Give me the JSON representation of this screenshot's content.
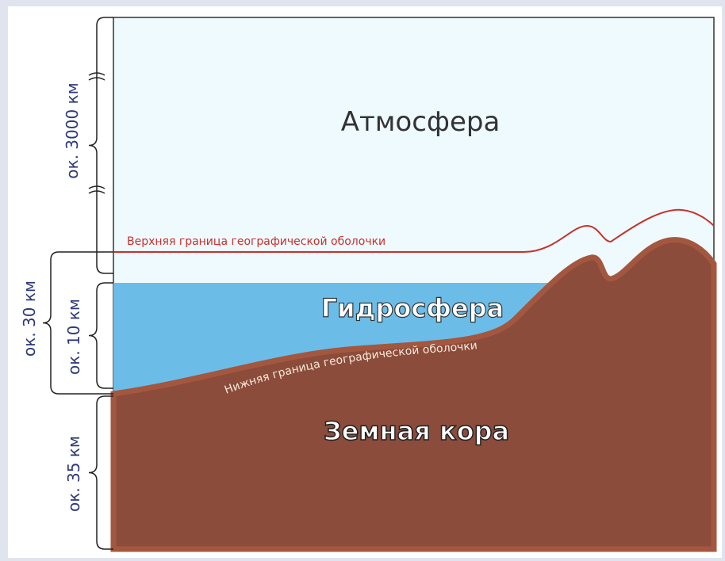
{
  "labels": {
    "atmosphere": "Атмосфера",
    "hydrosphere": "Гидросфера",
    "crust": "Земная кора",
    "upper_boundary": "Верхняя граница географической оболочки",
    "lower_boundary": "Нижняя граница географической оболочки"
  },
  "dimensions": {
    "atmosphere": "ок. 3000 км",
    "shell": "ок. 30 км",
    "hydrosphere": "ок. 10 км",
    "crust": "ок. 35 км"
  }
}
